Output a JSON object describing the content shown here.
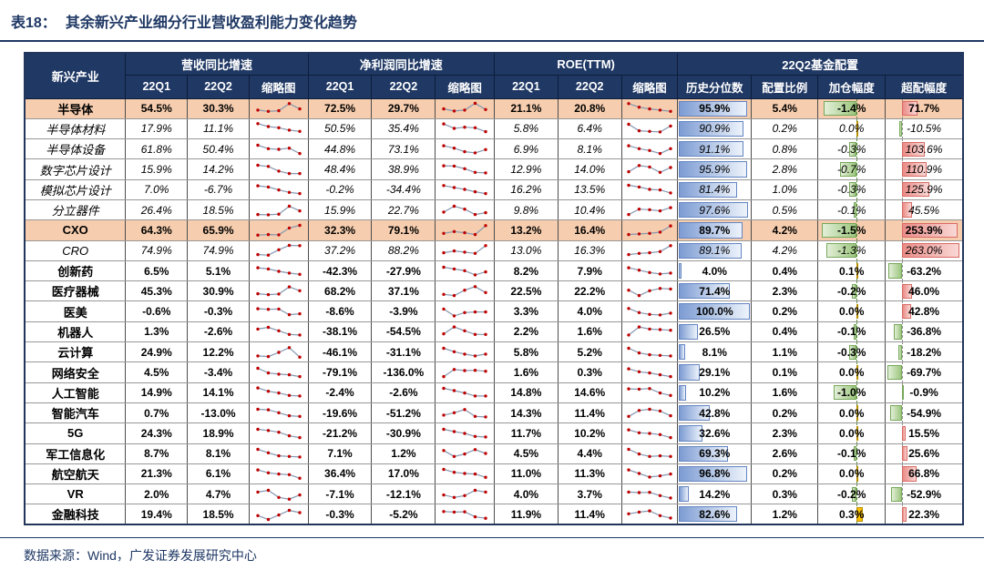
{
  "title": {
    "label": "表18：",
    "text": "其余新兴产业细分行业营收盈利能力变化趋势"
  },
  "footer": {
    "source": "数据来源：Wind，广发证券发展研究中心"
  },
  "colors": {
    "header_bg": "#1F3864",
    "title_text": "#1F3864",
    "highlight_row_bg": "#F6CDAE",
    "percentile_bar": "#7D9CD3",
    "reduce_bar_green": "#9CC67E",
    "increase_bar_orange": "#FFC000",
    "over_bar_red": "#EA8C88",
    "spark_line": "#8497B0",
    "spark_marker": "#C00000"
  },
  "table": {
    "header": {
      "industry": "新兴产业",
      "groups": [
        "营收同比增速",
        "净利润同比增速",
        "ROE(TTM)",
        "22Q2基金配置"
      ],
      "sub": {
        "q1": "22Q1",
        "q2": "22Q2",
        "spark": "缩略图",
        "hist": "历史分位数",
        "ratio": "配置比例",
        "add": "加仓幅度",
        "over": "超配幅度"
      }
    },
    "rows": [
      {
        "name": "半导体",
        "style": "main",
        "highlight": true,
        "rev": {
          "q1": "54.5%",
          "q2": "30.3%",
          "spark": [
            35,
            25,
            30,
            90,
            45
          ]
        },
        "np": {
          "q1": "72.5%",
          "q2": "29.7%",
          "spark": [
            45,
            28,
            35,
            92,
            40
          ]
        },
        "roe": {
          "q1": "21.1%",
          "q2": "20.8%",
          "spark": [
            90,
            60,
            45,
            35,
            25
          ]
        },
        "fund": {
          "hist": "95.9%",
          "ratio": "5.4%",
          "add": "-1.4%",
          "over": "71.7%"
        }
      },
      {
        "name": "半导体材料",
        "style": "sub",
        "highlight": false,
        "rev": {
          "q1": "17.9%",
          "q2": "11.1%",
          "spark": [
            90,
            65,
            55,
            35,
            25
          ]
        },
        "np": {
          "q1": "50.5%",
          "q2": "35.4%",
          "spark": [
            88,
            50,
            60,
            55,
            22
          ]
        },
        "roe": {
          "q1": "5.8%",
          "q2": "6.4%",
          "spark": [
            85,
            30,
            25,
            20,
            70
          ]
        },
        "fund": {
          "hist": "90.9%",
          "ratio": "0.2%",
          "add": "0.0%",
          "over": "-10.5%"
        }
      },
      {
        "name": "半导体设备",
        "style": "sub",
        "highlight": false,
        "rev": {
          "q1": "61.8%",
          "q2": "50.4%",
          "spark": [
            85,
            55,
            50,
            60,
            15
          ]
        },
        "np": {
          "q1": "44.8%",
          "q2": "73.1%",
          "spark": [
            80,
            60,
            30,
            20,
            48
          ]
        },
        "roe": {
          "q1": "6.9%",
          "q2": "8.1%",
          "spark": [
            80,
            55,
            40,
            15,
            55
          ]
        },
        "fund": {
          "hist": "91.1%",
          "ratio": "0.8%",
          "add": "-0.3%",
          "over": "103.6%"
        }
      },
      {
        "name": "数字芯片设计",
        "style": "sub",
        "highlight": false,
        "rev": {
          "q1": "15.9%",
          "q2": "14.2%",
          "spark": [
            85,
            75,
            35,
            15,
            15
          ]
        },
        "np": {
          "q1": "48.4%",
          "q2": "38.9%",
          "spark": [
            80,
            78,
            55,
            25,
            20
          ]
        },
        "roe": {
          "q1": "12.9%",
          "q2": "14.0%",
          "spark": [
            30,
            82,
            70,
            25,
            65
          ]
        },
        "fund": {
          "hist": "95.9%",
          "ratio": "2.8%",
          "add": "-0.7%",
          "over": "110.9%"
        }
      },
      {
        "name": "模拟芯片设计",
        "style": "sub",
        "highlight": false,
        "rev": {
          "q1": "7.0%",
          "q2": "-6.7%",
          "spark": [
            80,
            70,
            45,
            25,
            15
          ]
        },
        "np": {
          "q1": "-0.2%",
          "q2": "-34.4%",
          "spark": [
            82,
            65,
            50,
            30,
            15
          ]
        },
        "roe": {
          "q1": "16.2%",
          "q2": "13.5%",
          "spark": [
            85,
            70,
            50,
            45,
            20
          ]
        },
        "fund": {
          "hist": "81.4%",
          "ratio": "1.0%",
          "add": "-0.3%",
          "over": "125.9%"
        }
      },
      {
        "name": "分立器件",
        "style": "sub",
        "highlight": false,
        "rev": {
          "q1": "26.4%",
          "q2": "18.5%",
          "spark": [
            15,
            12,
            18,
            85,
            45
          ]
        },
        "np": {
          "q1": "15.9%",
          "q2": "22.7%",
          "spark": [
            35,
            85,
            60,
            15,
            30
          ]
        },
        "roe": {
          "q1": "9.8%",
          "q2": "10.4%",
          "spark": [
            15,
            60,
            55,
            45,
            72
          ]
        },
        "fund": {
          "hist": "97.6%",
          "ratio": "0.5%",
          "add": "-0.1%",
          "over": "45.5%"
        }
      },
      {
        "name": "CXO",
        "style": "main",
        "highlight": true,
        "rev": {
          "q1": "64.3%",
          "q2": "65.9%",
          "spark": [
            10,
            15,
            12,
            70,
            92
          ]
        },
        "np": {
          "q1": "32.3%",
          "q2": "79.1%",
          "spark": [
            25,
            40,
            30,
            15,
            90
          ]
        },
        "roe": {
          "q1": "13.2%",
          "q2": "16.4%",
          "spark": [
            15,
            20,
            25,
            35,
            88
          ]
        },
        "fund": {
          "hist": "89.7%",
          "ratio": "4.2%",
          "add": "-1.5%",
          "over": "253.9%"
        }
      },
      {
        "name": "CRO",
        "style": "sub",
        "highlight": false,
        "rev": {
          "q1": "74.9%",
          "q2": "74.9%",
          "spark": [
            15,
            10,
            55,
            92,
            90
          ]
        },
        "np": {
          "q1": "37.2%",
          "q2": "88.2%",
          "spark": [
            30,
            45,
            35,
            25,
            90
          ]
        },
        "roe": {
          "q1": "13.0%",
          "q2": "16.3%",
          "spark": [
            15,
            25,
            30,
            40,
            90
          ]
        },
        "fund": {
          "hist": "89.1%",
          "ratio": "4.2%",
          "add": "-1.3%",
          "over": "263.0%"
        }
      },
      {
        "name": "创新药",
        "style": "main",
        "highlight": false,
        "rev": {
          "q1": "6.5%",
          "q2": "5.1%",
          "spark": [
            80,
            70,
            50,
            35,
            25
          ]
        },
        "np": {
          "q1": "-42.3%",
          "q2": "-27.9%",
          "spark": [
            85,
            70,
            55,
            20,
            45
          ]
        },
        "roe": {
          "q1": "8.2%",
          "q2": "7.9%",
          "spark": [
            80,
            60,
            40,
            28,
            35
          ]
        },
        "fund": {
          "hist": "4.0%",
          "ratio": "0.4%",
          "add": "0.1%",
          "over": "-63.2%"
        }
      },
      {
        "name": "医疗器械",
        "style": "main",
        "highlight": false,
        "rev": {
          "q1": "45.3%",
          "q2": "30.9%",
          "spark": [
            30,
            22,
            28,
            88,
            55
          ]
        },
        "np": {
          "q1": "68.2%",
          "q2": "37.1%",
          "spark": [
            25,
            15,
            60,
            90,
            40
          ]
        },
        "roe": {
          "q1": "22.5%",
          "q2": "22.2%",
          "spark": [
            60,
            15,
            55,
            75,
            70
          ]
        },
        "fund": {
          "hist": "71.4%",
          "ratio": "2.3%",
          "add": "-0.2%",
          "over": "46.0%"
        }
      },
      {
        "name": "医美",
        "style": "main",
        "highlight": false,
        "rev": {
          "q1": "-0.6%",
          "q2": "-0.3%",
          "spark": [
            72,
            68,
            70,
            22,
            30
          ]
        },
        "np": {
          "q1": "-8.6%",
          "q2": "-3.9%",
          "spark": [
            70,
            12,
            40,
            45,
            45
          ]
        },
        "roe": {
          "q1": "3.3%",
          "q2": "4.0%",
          "spark": [
            75,
            40,
            25,
            20,
            35
          ]
        },
        "fund": {
          "hist": "100.0%",
          "ratio": "0.2%",
          "add": "0.0%",
          "over": "42.8%"
        }
      },
      {
        "name": "机器人",
        "style": "main",
        "highlight": false,
        "rev": {
          "q1": "1.3%",
          "q2": "-2.6%",
          "spark": [
            70,
            85,
            55,
            25,
            20
          ]
        },
        "np": {
          "q1": "-38.1%",
          "q2": "-54.5%",
          "spark": [
            30,
            88,
            55,
            25,
            25
          ]
        },
        "roe": {
          "q1": "2.2%",
          "q2": "1.6%",
          "spark": [
            20,
            88,
            70,
            65,
            60
          ]
        },
        "fund": {
          "hist": "26.5%",
          "ratio": "0.4%",
          "add": "-0.1%",
          "over": "-36.8%"
        }
      },
      {
        "name": "云计算",
        "style": "main",
        "highlight": false,
        "rev": {
          "q1": "24.9%",
          "q2": "12.2%",
          "spark": [
            20,
            15,
            50,
            90,
            10
          ]
        },
        "np": {
          "q1": "-46.1%",
          "q2": "-31.1%",
          "spark": [
            85,
            55,
            35,
            20,
            35
          ]
        },
        "roe": {
          "q1": "5.8%",
          "q2": "5.2%",
          "spark": [
            85,
            45,
            30,
            25,
            20
          ]
        },
        "fund": {
          "hist": "8.1%",
          "ratio": "1.1%",
          "add": "-0.3%",
          "over": "-18.2%"
        }
      },
      {
        "name": "网络安全",
        "style": "main",
        "highlight": false,
        "rev": {
          "q1": "4.5%",
          "q2": "-3.4%",
          "spark": [
            85,
            45,
            35,
            30,
            15
          ]
        },
        "np": {
          "q1": "-79.1%",
          "q2": "-136.0%",
          "spark": [
            15,
            75,
            65,
            68,
            60
          ]
        },
        "roe": {
          "q1": "1.6%",
          "q2": "0.3%",
          "spark": [
            80,
            55,
            45,
            30,
            15
          ]
        },
        "fund": {
          "hist": "29.1%",
          "ratio": "0.1%",
          "add": "0.0%",
          "over": "-69.7%"
        }
      },
      {
        "name": "人工智能",
        "style": "main",
        "highlight": false,
        "rev": {
          "q1": "14.9%",
          "q2": "14.1%",
          "spark": [
            88,
            60,
            45,
            25,
            20
          ]
        },
        "np": {
          "q1": "-2.4%",
          "q2": "-2.6%",
          "spark": [
            85,
            65,
            45,
            20,
            20
          ]
        },
        "roe": {
          "q1": "14.8%",
          "q2": "14.6%",
          "spark": [
            80,
            78,
            82,
            45,
            25
          ]
        },
        "fund": {
          "hist": "10.2%",
          "ratio": "1.6%",
          "add": "-1.0%",
          "over": "-0.9%"
        }
      },
      {
        "name": "智能汽车",
        "style": "main",
        "highlight": false,
        "rev": {
          "q1": "0.7%",
          "q2": "-13.0%",
          "spark": [
            85,
            80,
            55,
            30,
            25
          ]
        },
        "np": {
          "q1": "-19.6%",
          "q2": "-51.2%",
          "spark": [
            35,
            55,
            82,
            25,
            20
          ]
        },
        "roe": {
          "q1": "14.3%",
          "q2": "11.4%",
          "spark": [
            25,
            75,
            85,
            70,
            30
          ]
        },
        "fund": {
          "hist": "42.8%",
          "ratio": "0.2%",
          "add": "0.0%",
          "over": "-54.9%"
        }
      },
      {
        "name": "5G",
        "style": "main",
        "highlight": false,
        "rev": {
          "q1": "24.3%",
          "q2": "18.9%",
          "spark": [
            85,
            75,
            60,
            30,
            15
          ]
        },
        "np": {
          "q1": "-21.2%",
          "q2": "-30.9%",
          "spark": [
            85,
            65,
            50,
            25,
            20
          ]
        },
        "roe": {
          "q1": "11.7%",
          "q2": "10.2%",
          "spark": [
            80,
            55,
            50,
            40,
            15
          ]
        },
        "fund": {
          "hist": "32.6%",
          "ratio": "2.3%",
          "add": "0.0%",
          "over": "15.5%"
        }
      },
      {
        "name": "军工信息化",
        "style": "main",
        "highlight": false,
        "rev": {
          "q1": "8.7%",
          "q2": "8.1%",
          "spark": [
            85,
            55,
            30,
            25,
            20
          ]
        },
        "np": {
          "q1": "7.1%",
          "q2": "1.2%",
          "spark": [
            75,
            25,
            45,
            82,
            50
          ]
        },
        "roe": {
          "q1": "4.5%",
          "q2": "4.4%",
          "spark": [
            85,
            45,
            25,
            30,
            25
          ]
        },
        "fund": {
          "hist": "69.3%",
          "ratio": "2.6%",
          "add": "-0.1%",
          "over": "25.6%"
        }
      },
      {
        "name": "航空航天",
        "style": "main",
        "highlight": false,
        "rev": {
          "q1": "21.3%",
          "q2": "6.1%",
          "spark": [
            80,
            55,
            45,
            40,
            10
          ]
        },
        "np": {
          "q1": "36.4%",
          "q2": "17.0%",
          "spark": [
            85,
            60,
            50,
            45,
            18
          ]
        },
        "roe": {
          "q1": "11.0%",
          "q2": "11.3%",
          "spark": [
            80,
            50,
            20,
            30,
            45
          ]
        },
        "fund": {
          "hist": "96.8%",
          "ratio": "0.2%",
          "add": "0.0%",
          "over": "66.8%"
        }
      },
      {
        "name": "VR",
        "style": "main",
        "highlight": false,
        "rev": {
          "q1": "2.0%",
          "q2": "4.7%",
          "spark": [
            70,
            85,
            25,
            10,
            45
          ]
        },
        "np": {
          "q1": "-7.1%",
          "q2": "-12.1%",
          "spark": [
            45,
            25,
            40,
            85,
            70
          ]
        },
        "roe": {
          "q1": "4.0%",
          "q2": "3.7%",
          "spark": [
            70,
            65,
            68,
            40,
            20
          ]
        },
        "fund": {
          "hist": "14.2%",
          "ratio": "0.3%",
          "add": "-0.2%",
          "over": "-52.9%"
        }
      },
      {
        "name": "金融科技",
        "style": "main",
        "highlight": false,
        "rev": {
          "q1": "19.4%",
          "q2": "18.5%",
          "spark": [
            40,
            8,
            45,
            85,
            65
          ]
        },
        "np": {
          "q1": "-0.3%",
          "q2": "-5.2%",
          "spark": [
            75,
            70,
            72,
            30,
            18
          ]
        },
        "roe": {
          "q1": "11.9%",
          "q2": "11.4%",
          "spark": [
            55,
            70,
            80,
            40,
            20
          ]
        },
        "fund": {
          "hist": "82.6%",
          "ratio": "1.2%",
          "add": "0.3%",
          "over": "22.3%"
        }
      }
    ]
  }
}
